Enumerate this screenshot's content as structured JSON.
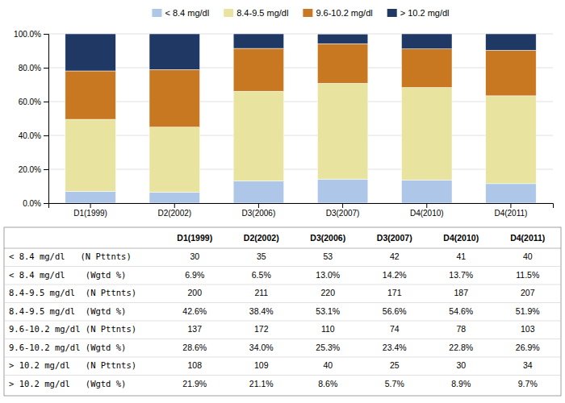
{
  "chart_data": {
    "type": "bar",
    "stacked": true,
    "categories": [
      "D1(1999)",
      "D2(2002)",
      "D3(2006)",
      "D3(2007)",
      "D4(2010)",
      "D4(2011)"
    ],
    "series": [
      {
        "name": "< 8.4 mg/dl",
        "color": "#aec6e8",
        "values": [
          6.9,
          6.5,
          13.0,
          14.2,
          13.7,
          11.5
        ]
      },
      {
        "name": "8.4-9.5 mg/dl",
        "color": "#e8e4a0",
        "values": [
          42.6,
          38.4,
          53.1,
          56.6,
          54.6,
          51.9
        ]
      },
      {
        "name": "9.6-10.2 mg/dl",
        "color": "#c87820",
        "values": [
          28.6,
          34.0,
          25.3,
          23.4,
          22.8,
          26.9
        ]
      },
      {
        "name": "> 10.2 mg/dl",
        "color": "#1f3864",
        "values": [
          21.9,
          21.1,
          8.6,
          5.7,
          8.9,
          9.7
        ]
      }
    ],
    "ylim": [
      0,
      100
    ],
    "yticks": [
      {
        "value": 0,
        "label": "0.0%"
      },
      {
        "value": 20,
        "label": "20.0%"
      },
      {
        "value": 40,
        "label": "40.0%"
      },
      {
        "value": 60,
        "label": "60.0%"
      },
      {
        "value": 80,
        "label": "80.0%"
      },
      {
        "value": 100,
        "label": "100.0%"
      }
    ],
    "grid": true,
    "legend": "top",
    "table": {
      "row_labels": [
        "< 8.4 mg/dl   (N Pttnts)",
        "< 8.4 mg/dl    (Wgtd %)",
        "8.4-9.5 mg/dl  (N Pttnts)",
        "8.4-9.5 mg/dl  (Wgtd %)",
        "9.6-10.2 mg/dl (N Pttnts)",
        "9.6-10.2 mg/dl (Wgtd %)",
        "> 10.2 mg/dl   (N Pttnts)",
        "> 10.2 mg/dl   (Wgtd %)"
      ],
      "cells": [
        [
          "30",
          "35",
          "53",
          "42",
          "41",
          "40"
        ],
        [
          "6.9%",
          "6.5%",
          "13.0%",
          "14.2%",
          "13.7%",
          "11.5%"
        ],
        [
          "200",
          "211",
          "220",
          "171",
          "187",
          "207"
        ],
        [
          "42.6%",
          "38.4%",
          "53.1%",
          "56.6%",
          "54.6%",
          "51.9%"
        ],
        [
          "137",
          "172",
          "110",
          "74",
          "78",
          "103"
        ],
        [
          "28.6%",
          "34.0%",
          "25.3%",
          "23.4%",
          "22.8%",
          "26.9%"
        ],
        [
          "108",
          "109",
          "40",
          "25",
          "30",
          "34"
        ],
        [
          "21.9%",
          "21.1%",
          "8.6%",
          "5.7%",
          "8.9%",
          "9.7%"
        ]
      ]
    }
  }
}
